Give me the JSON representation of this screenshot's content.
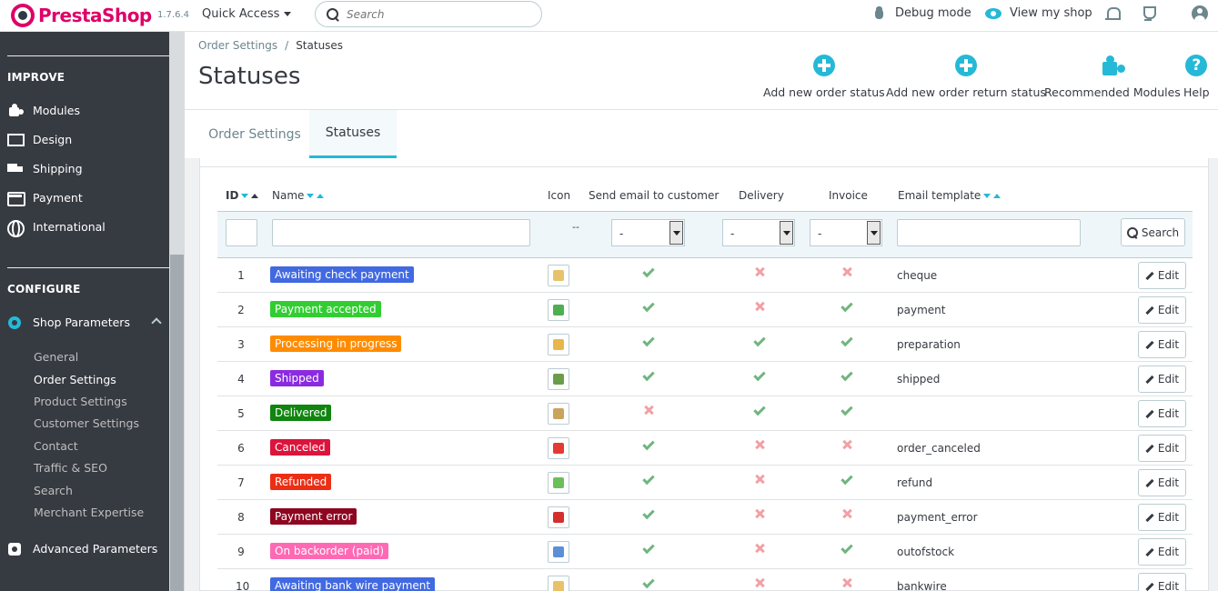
{
  "header": {
    "logo_text": "PrestaShop",
    "version": "1.7.6.4",
    "quick_access": "Quick Access",
    "search_placeholder": "Search",
    "debug_mode": "Debug mode",
    "view_shop": "View my shop"
  },
  "sidebar": {
    "improve_heading": "IMPROVE",
    "improve_items": [
      "Modules",
      "Design",
      "Shipping",
      "Payment",
      "International"
    ],
    "configure_heading": "CONFIGURE",
    "shop_parameters": "Shop Parameters",
    "sub_items": [
      "General",
      "Order Settings",
      "Product Settings",
      "Customer Settings",
      "Contact",
      "Traffic & SEO",
      "Search",
      "Merchant Expertise"
    ],
    "current_sub_item": "Order Settings",
    "advanced_parameters": "Advanced Parameters"
  },
  "page": {
    "breadcrumb_parent": "Order Settings",
    "breadcrumb_separator": "/",
    "breadcrumb_current": "Statuses",
    "title": "Statuses",
    "toolbar": {
      "add_order_status": "Add new order status",
      "add_return_status": "Add new order return status",
      "recommended_modules": "Recommended Modules",
      "help": "Help",
      "help_glyph": "?"
    },
    "tabs": [
      "Order Settings",
      "Statuses"
    ],
    "active_tab": "Statuses"
  },
  "table": {
    "columns": {
      "id": "ID",
      "name": "Name",
      "icon": "Icon",
      "send_email": "Send email to customer",
      "delivery": "Delivery",
      "invoice": "Invoice",
      "email_template": "Email template"
    },
    "filters": {
      "icon_placeholder": "--",
      "send_email_value": "-",
      "delivery_value": "-",
      "invoice_value": "-",
      "search_button": "Search"
    },
    "edit_label": "Edit",
    "rows": [
      {
        "id": "1",
        "name": "Awaiting check payment",
        "color": "#4169e1",
        "icon_color": "#e8c26a",
        "send_email": true,
        "delivery": false,
        "invoice": false,
        "template": "cheque"
      },
      {
        "id": "2",
        "name": "Payment accepted",
        "color": "#32cd32",
        "icon_color": "#4caf50",
        "send_email": true,
        "delivery": false,
        "invoice": true,
        "template": "payment"
      },
      {
        "id": "3",
        "name": "Processing in progress",
        "color": "#ff8c00",
        "icon_color": "#e8b64a",
        "send_email": true,
        "delivery": true,
        "invoice": true,
        "template": "preparation"
      },
      {
        "id": "4",
        "name": "Shipped",
        "color": "#8a2be2",
        "icon_color": "#6a9d4a",
        "send_email": true,
        "delivery": true,
        "invoice": true,
        "template": "shipped"
      },
      {
        "id": "5",
        "name": "Delivered",
        "color": "#108510",
        "icon_color": "#c9a45c",
        "send_email": false,
        "delivery": true,
        "invoice": true,
        "template": ""
      },
      {
        "id": "6",
        "name": "Canceled",
        "color": "#dc143c",
        "icon_color": "#e53935",
        "send_email": true,
        "delivery": false,
        "invoice": false,
        "template": "order_canceled"
      },
      {
        "id": "7",
        "name": "Refunded",
        "color": "#ec2e15",
        "icon_color": "#6bbf59",
        "send_email": true,
        "delivery": false,
        "invoice": true,
        "template": "refund"
      },
      {
        "id": "8",
        "name": "Payment error",
        "color": "#8f0621",
        "icon_color": "#d32f2f",
        "send_email": true,
        "delivery": false,
        "invoice": false,
        "template": "payment_error"
      },
      {
        "id": "9",
        "name": "On backorder (paid)",
        "color": "#ff69b4",
        "icon_color": "#5b8fd6",
        "send_email": true,
        "delivery": false,
        "invoice": true,
        "template": "outofstock"
      },
      {
        "id": "10",
        "name": "Awaiting bank wire payment",
        "color": "#4169e1",
        "icon_color": "#e8c26a",
        "send_email": true,
        "delivery": false,
        "invoice": false,
        "template": "bankwire"
      }
    ]
  }
}
